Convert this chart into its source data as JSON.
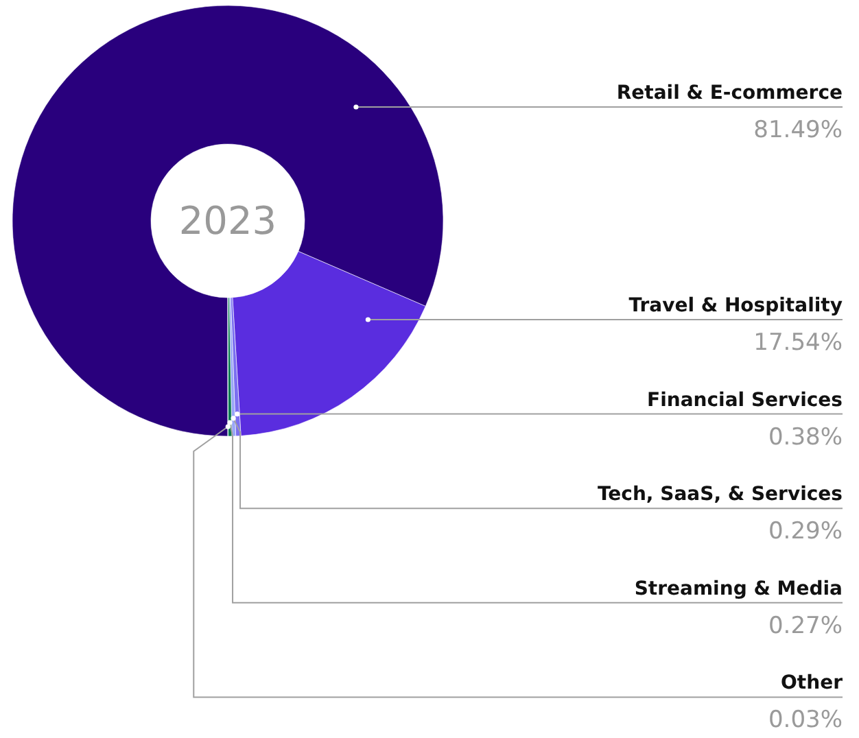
{
  "chart_data": {
    "type": "donut",
    "title": "2023",
    "categories": [
      "Retail & E-commerce",
      "Travel & Hospitality",
      "Financial Services",
      "Tech, SaaS, & Services",
      "Streaming & Media",
      "Other"
    ],
    "values": [
      81.49,
      17.54,
      0.38,
      0.29,
      0.27,
      0.03
    ],
    "colors": [
      "#29007d",
      "#5a2ddf",
      "#7b6ff0",
      "#9aa6f7",
      "#0a7a50",
      "#1fd0a0"
    ],
    "value_labels": [
      "81.49%",
      "17.54%",
      "0.38%",
      "0.29%",
      "0.27%",
      "0.03%"
    ]
  }
}
